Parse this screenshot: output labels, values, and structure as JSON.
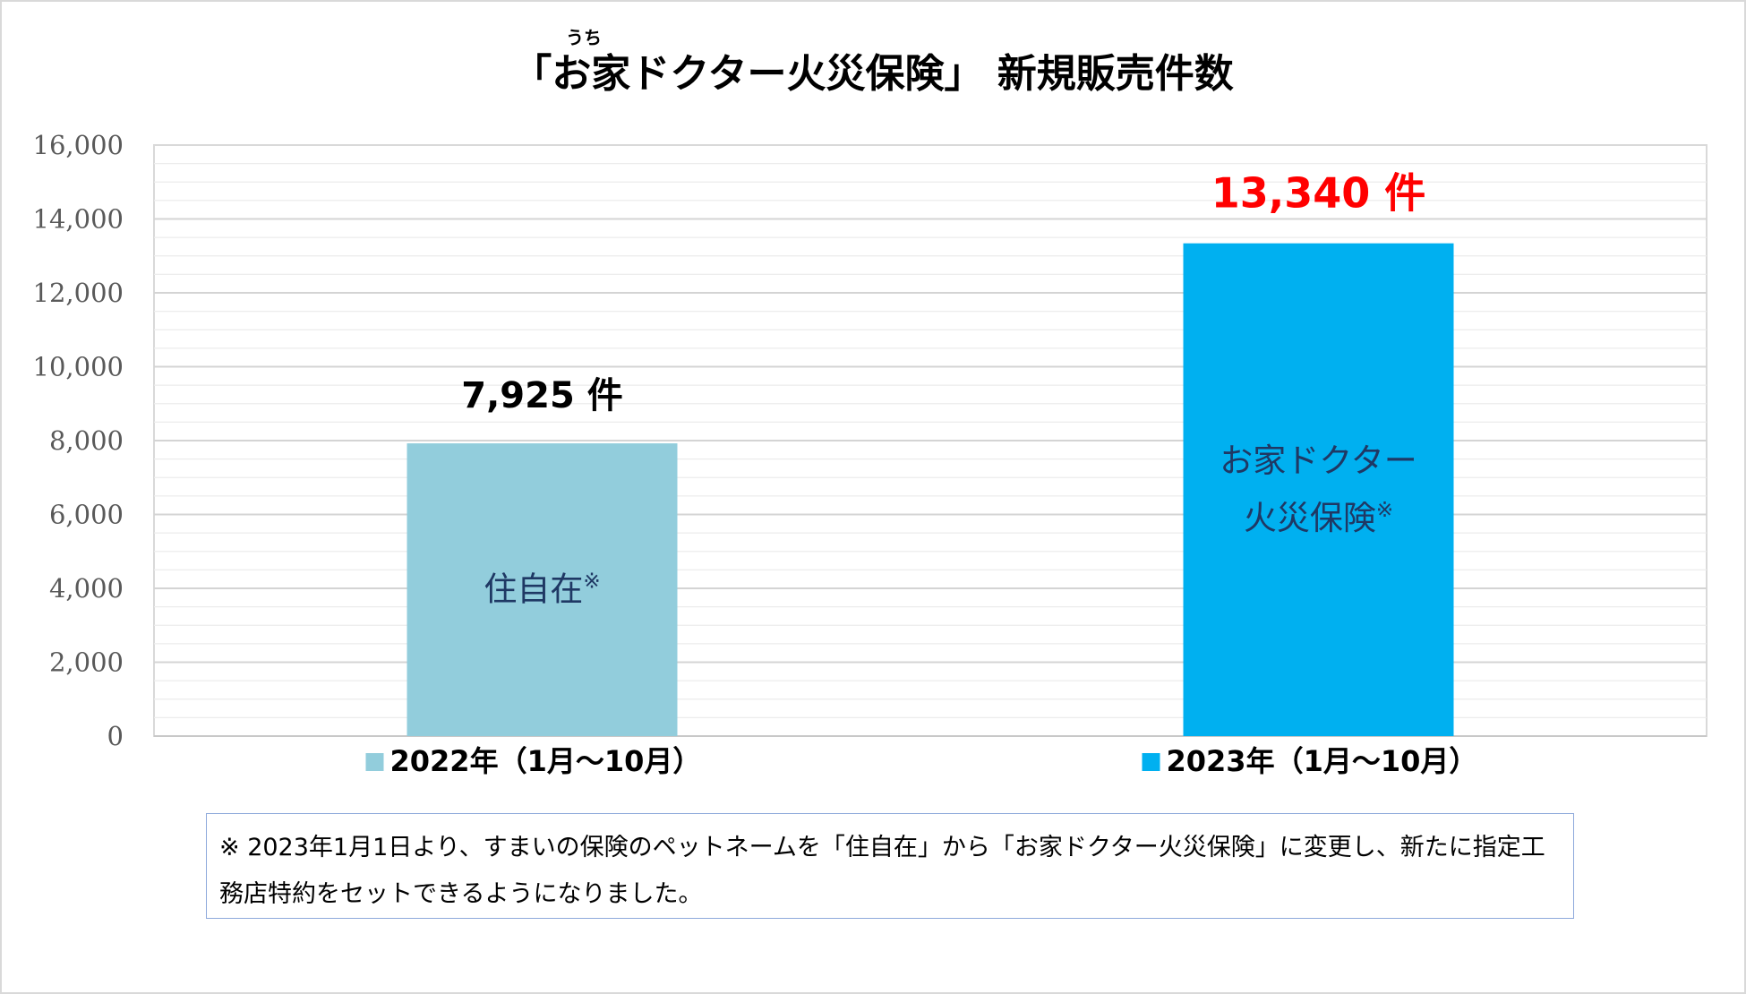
{
  "chart_data": {
    "type": "bar",
    "title": "「お家ドクター火災保険」 新規販売件数",
    "title_ruby": "うち",
    "categories": [
      "2022年（1月～10月）",
      "2023年（1月～10月）"
    ],
    "values": [
      7925,
      13340
    ],
    "data_labels": [
      "7,925 件",
      "13,340 件"
    ],
    "bar_labels": [
      [
        "住自在※"
      ],
      [
        "お家ドクター",
        "火災保険※"
      ]
    ],
    "colors": [
      "#92cddc",
      "#00b0f0"
    ],
    "data_label_colors": [
      "#000000",
      "#ff0000"
    ],
    "inner_label_color": "#1f3864",
    "ylim": [
      0,
      16000
    ],
    "yticks": [
      "0",
      "2,000",
      "4,000",
      "6,000",
      "8,000",
      "10,000",
      "12,000",
      "14,000",
      "16,000"
    ],
    "ytick_values": [
      0,
      2000,
      4000,
      6000,
      8000,
      10000,
      12000,
      14000,
      16000
    ],
    "grid": true,
    "legend_position": "bottom"
  },
  "footnote": {
    "line1": "※ 2023年1月1日より、すまいの保険のペットネームを「住自在」から「お家ドクター火災保険」に変更し、新たに指定工",
    "line2": "務店特約をセットできるようになりました。"
  }
}
